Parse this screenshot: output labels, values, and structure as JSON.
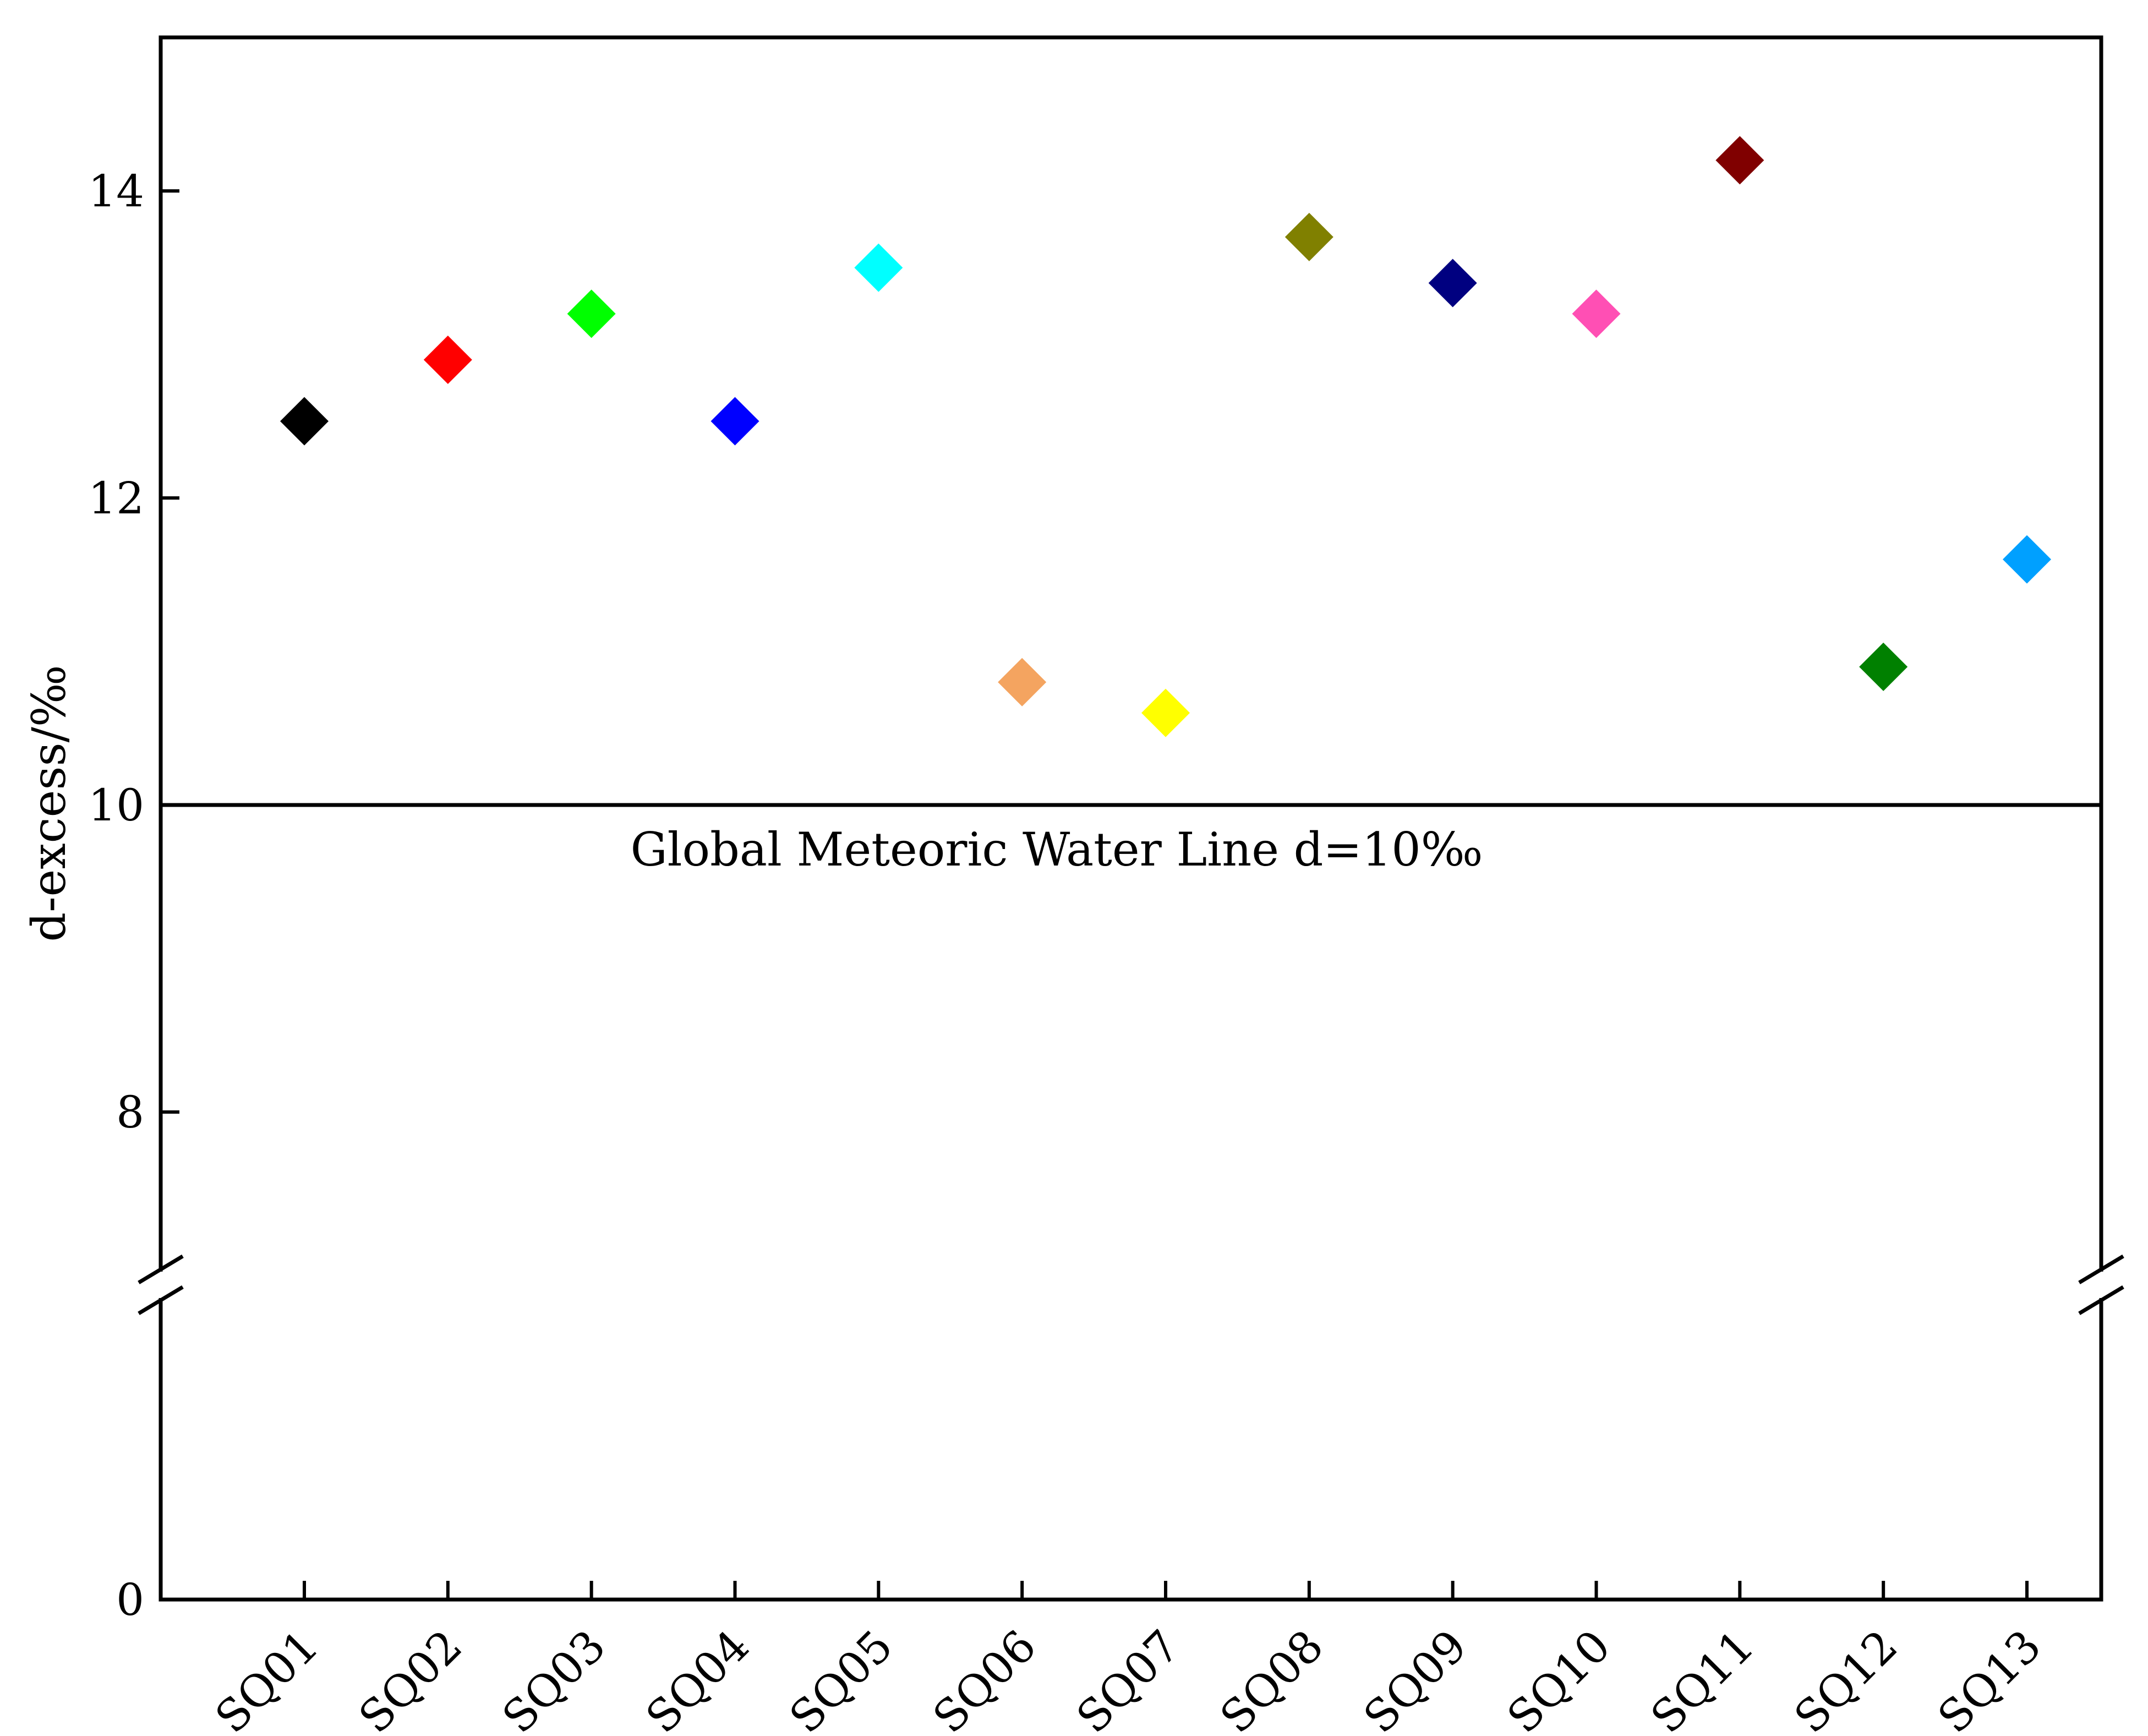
{
  "chart_data": {
    "type": "scatter",
    "ylabel": "d-excess/‰",
    "xlabel": "",
    "categories": [
      "SQ01",
      "SQ02",
      "SQ03",
      "SQ04",
      "SQ05",
      "SQ06",
      "SQ07",
      "SQ08",
      "SQ09",
      "SQ10",
      "SQ11",
      "SQ12",
      "SQ13"
    ],
    "values": [
      12.5,
      12.9,
      13.2,
      12.5,
      13.5,
      10.8,
      10.6,
      13.7,
      13.4,
      13.2,
      14.2,
      10.9,
      11.6
    ],
    "colors": [
      "#000000",
      "#ff0000",
      "#00ff00",
      "#0000ff",
      "#00ffff",
      "#f4a460",
      "#ffff00",
      "#808000",
      "#000080",
      "#ff4fb4",
      "#800000",
      "#008000",
      "#00a0ff"
    ],
    "marker": "diamond",
    "y_ticks": [
      "0",
      "8",
      "10",
      "12",
      "14"
    ],
    "y_segments": [
      {
        "range": [
          0,
          0
        ],
        "ticks": [
          0
        ]
      },
      {
        "range": [
          7,
          15
        ],
        "ticks": [
          8,
          10,
          12,
          14
        ]
      }
    ],
    "axis_break": true,
    "grid": false,
    "reference_line": {
      "y": 10,
      "label": "Global Meteoric Water Line d=10‰"
    }
  }
}
